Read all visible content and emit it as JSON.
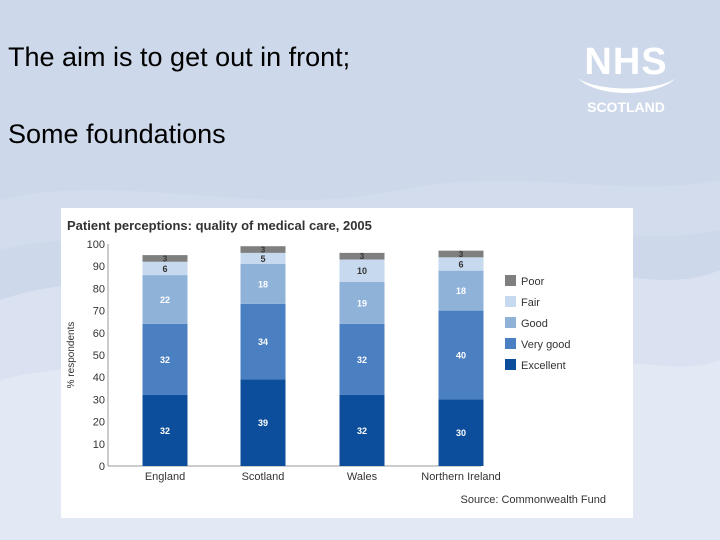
{
  "slide": {
    "line1": "The aim is to get out in front;",
    "line2": "Some foundations"
  },
  "logo": {
    "wordmark": "NHS",
    "subtitle": "SCOTLAND"
  },
  "colors": {
    "background": "#cdd8ea",
    "poor": "#7f7f7f",
    "fair": "#c6d9ef",
    "good": "#8fb2d9",
    "very_good": "#4a7fc1",
    "excellent": "#0d4e9c"
  },
  "chart_data": {
    "type": "bar",
    "stacked": true,
    "title": "Patient perceptions: quality of medical care, 2005",
    "ylabel": "% respondents",
    "xlabel": "",
    "ylim": [
      0,
      100
    ],
    "yticks": [
      0,
      10,
      20,
      30,
      40,
      50,
      60,
      70,
      80,
      90,
      100
    ],
    "categories": [
      "England",
      "Scotland",
      "Wales",
      "Northern Ireland"
    ],
    "series": [
      {
        "name": "Excellent",
        "color": "#0d4e9c",
        "values": [
          32,
          39,
          32,
          30
        ]
      },
      {
        "name": "Very good",
        "color": "#4a7fc1",
        "values": [
          32,
          34,
          32,
          40
        ]
      },
      {
        "name": "Good",
        "color": "#8fb2d9",
        "values": [
          22,
          18,
          19,
          18
        ]
      },
      {
        "name": "Fair",
        "color": "#c6d9ef",
        "values": [
          6,
          5,
          10,
          6
        ]
      },
      {
        "name": "Poor",
        "color": "#7f7f7f",
        "values": [
          3,
          3,
          3,
          3
        ]
      }
    ],
    "legend_order": [
      "Poor",
      "Fair",
      "Good",
      "Very good",
      "Excellent"
    ],
    "legend_position": "right",
    "source": "Source: Commonwealth Fund",
    "grid": false
  }
}
